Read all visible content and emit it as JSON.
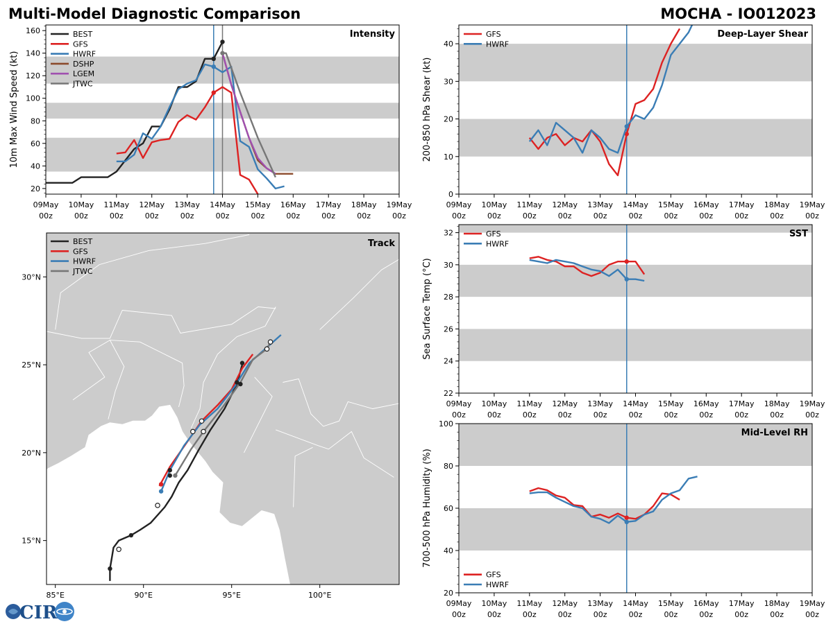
{
  "header": {
    "title": "Multi-Model Diagnostic Comparison",
    "storm": "MOCHA - IO012023"
  },
  "colors": {
    "BEST": "#222222",
    "GFS": "#dd2222",
    "HWRF": "#3a7db5",
    "DSHP": "#8b4a2b",
    "LGEM": "#a050b0",
    "JTWC": "#777777",
    "band": "#cccccc",
    "vline": "#3a7db5",
    "vline_gray": "#777777"
  },
  "time_axis": {
    "ticks": [
      "09May\n00z",
      "10May\n00z",
      "11May\n00z",
      "12May\n00z",
      "13May\n00z",
      "14May\n00z",
      "15May\n00z",
      "16May\n00z",
      "17May\n00z",
      "18May\n00z",
      "19May\n00z"
    ],
    "range_days": [
      0,
      10
    ],
    "analysis_day": 4.75
  },
  "chart_data": [
    {
      "id": "intensity",
      "type": "line",
      "title": "Intensity",
      "ylabel": "10m Max Wind Speed (kt)",
      "ylim": [
        15,
        165
      ],
      "yticks": [
        20,
        40,
        60,
        80,
        100,
        120,
        140,
        160
      ],
      "bands": [
        [
          35,
          65
        ],
        [
          82,
          96
        ],
        [
          113,
          137
        ]
      ],
      "vlines": [
        {
          "x": 4.75,
          "color": "HWRF"
        },
        {
          "x": 5.0,
          "color": "JTWC"
        }
      ],
      "legend": [
        "BEST",
        "GFS",
        "HWRF",
        "DSHP",
        "LGEM",
        "JTWC"
      ],
      "series": [
        {
          "name": "BEST",
          "x": [
            0,
            0.25,
            0.5,
            0.75,
            1,
            1.25,
            1.5,
            1.75,
            2,
            2.25,
            2.5,
            2.75,
            3,
            3.25,
            3.5,
            3.75,
            4,
            4.25,
            4.5,
            4.75,
            5
          ],
          "y": [
            25,
            25,
            25,
            25,
            30,
            30,
            30,
            30,
            35,
            45,
            55,
            60,
            75,
            75,
            90,
            110,
            110,
            115,
            135,
            135,
            150
          ],
          "markers": [
            {
              "x": 4.75,
              "y": 135
            },
            {
              "x": 5,
              "y": 150
            }
          ]
        },
        {
          "name": "GFS",
          "x": [
            2,
            2.25,
            2.5,
            2.75,
            3,
            3.25,
            3.5,
            3.75,
            4,
            4.25,
            4.5,
            4.75,
            5,
            5.25,
            5.5,
            5.75,
            6
          ],
          "y": [
            51,
            52,
            63,
            47,
            61,
            63,
            64,
            79,
            85,
            81,
            92,
            105,
            110,
            105,
            32,
            28,
            15
          ],
          "markers": [
            {
              "x": 4.75,
              "y": 105
            }
          ]
        },
        {
          "name": "HWRF",
          "x": [
            2,
            2.25,
            2.5,
            2.75,
            3,
            3.25,
            3.5,
            3.75,
            4,
            4.25,
            4.5,
            4.75,
            5,
            5.25,
            5.5,
            5.75,
            6,
            6.25,
            6.5,
            6.75
          ],
          "y": [
            44,
            44,
            50,
            69,
            64,
            75,
            92,
            108,
            113,
            116,
            130,
            128,
            123,
            128,
            62,
            57,
            37,
            29,
            20,
            22
          ],
          "markers": [
            {
              "x": 4.75,
              "y": 128
            }
          ]
        },
        {
          "name": "DSHP",
          "x": [
            5,
            5.25,
            5.5,
            5.75,
            6,
            6.25,
            6.5,
            6.75,
            7
          ],
          "y": [
            140,
            112,
            88,
            65,
            45,
            38,
            33,
            33,
            33
          ]
        },
        {
          "name": "LGEM",
          "x": [
            5,
            5.25,
            5.5,
            5.75,
            6,
            6.25,
            6.5
          ],
          "y": [
            140,
            112,
            88,
            65,
            47,
            38,
            33
          ]
        },
        {
          "name": "JTWC",
          "x": [
            5,
            5.1,
            5.25,
            5.5,
            6,
            6.5
          ],
          "y": [
            140,
            140,
            127,
            105,
            65,
            30
          ],
          "markers": [
            {
              "x": 5,
              "y": 140
            }
          ]
        }
      ]
    },
    {
      "id": "shear",
      "type": "line",
      "title": "Deep-Layer Shear",
      "ylabel": "200-850 hPa Shear (kt)",
      "ylim": [
        0,
        45
      ],
      "yticks": [
        0,
        10,
        20,
        30,
        40
      ],
      "bands": [
        [
          10,
          20
        ],
        [
          30,
          40
        ]
      ],
      "vlines": [
        {
          "x": 4.75,
          "color": "HWRF"
        }
      ],
      "legend": [
        "GFS",
        "HWRF"
      ],
      "series": [
        {
          "name": "GFS",
          "x": [
            2,
            2.25,
            2.5,
            2.75,
            3,
            3.25,
            3.5,
            3.75,
            4,
            4.25,
            4.5,
            4.75,
            5,
            5.25,
            5.5,
            5.75,
            6,
            6.25
          ],
          "y": [
            15,
            12,
            15,
            16,
            13,
            15,
            14,
            17,
            14,
            8,
            5,
            16,
            24,
            25,
            28,
            35,
            40,
            44
          ],
          "markers": [
            {
              "x": 4.75,
              "y": 16
            }
          ]
        },
        {
          "name": "HWRF",
          "x": [
            2,
            2.25,
            2.5,
            2.75,
            3,
            3.25,
            3.5,
            3.75,
            4,
            4.25,
            4.5,
            4.75,
            5,
            5.25,
            5.5,
            5.75,
            6,
            6.25,
            6.5,
            6.75
          ],
          "y": [
            14,
            17,
            13,
            19,
            17,
            15,
            11,
            17,
            15,
            12,
            11,
            18,
            21,
            20,
            23,
            29,
            37,
            40,
            43,
            48
          ],
          "markers": [
            {
              "x": 4.75,
              "y": 18
            }
          ]
        }
      ]
    },
    {
      "id": "sst",
      "type": "line",
      "title": "SST",
      "ylabel": "Sea Surface Temp (°C)",
      "ylim": [
        22,
        32.5
      ],
      "yticks": [
        22,
        24,
        26,
        28,
        30,
        32
      ],
      "bands": [
        [
          24,
          26
        ],
        [
          28,
          30
        ],
        [
          32,
          33
        ]
      ],
      "vlines": [
        {
          "x": 4.75,
          "color": "HWRF"
        }
      ],
      "legend": [
        "GFS",
        "HWRF"
      ],
      "series": [
        {
          "name": "GFS",
          "x": [
            2,
            2.25,
            2.5,
            2.75,
            3,
            3.25,
            3.5,
            3.75,
            4,
            4.25,
            4.5,
            4.75,
            5,
            5.25
          ],
          "y": [
            30.4,
            30.5,
            30.3,
            30.2,
            29.9,
            29.9,
            29.5,
            29.3,
            29.5,
            30.0,
            30.2,
            30.2,
            30.2,
            29.4
          ],
          "markers": [
            {
              "x": 4.75,
              "y": 30.2
            }
          ]
        },
        {
          "name": "HWRF",
          "x": [
            2,
            2.25,
            2.5,
            2.75,
            3,
            3.25,
            3.5,
            3.75,
            4,
            4.25,
            4.5,
            4.75,
            5,
            5.25
          ],
          "y": [
            30.3,
            30.2,
            30.1,
            30.3,
            30.2,
            30.1,
            29.9,
            29.7,
            29.6,
            29.3,
            29.7,
            29.1,
            29.1,
            29.0
          ],
          "markers": [
            {
              "x": 4.75,
              "y": 29.1
            }
          ]
        }
      ]
    },
    {
      "id": "rh",
      "type": "line",
      "title": "Mid-Level RH",
      "ylabel": "700-500 hPa Humidity (%)",
      "ylim": [
        20,
        100
      ],
      "yticks": [
        20,
        40,
        60,
        80,
        100
      ],
      "bands": [
        [
          40,
          60
        ],
        [
          80,
          100
        ]
      ],
      "vlines": [
        {
          "x": 4.75,
          "color": "HWRF"
        }
      ],
      "legend": [
        "GFS",
        "HWRF"
      ],
      "legend_position": "bottom-left",
      "series": [
        {
          "name": "GFS",
          "x": [
            2,
            2.25,
            2.5,
            2.75,
            3,
            3.25,
            3.5,
            3.75,
            4,
            4.25,
            4.5,
            4.75,
            5,
            5.25,
            5.5,
            5.75,
            6,
            6.25
          ],
          "y": [
            68,
            69.5,
            68.5,
            66,
            65,
            61.5,
            61,
            56,
            57,
            55.5,
            57.5,
            55.5,
            55,
            57,
            61,
            67,
            66.5,
            64
          ],
          "markers": [
            {
              "x": 4.75,
              "y": 55.5
            }
          ]
        },
        {
          "name": "HWRF",
          "x": [
            2,
            2.25,
            2.5,
            2.75,
            3,
            3.25,
            3.5,
            3.75,
            4,
            4.25,
            4.5,
            4.75,
            5,
            5.25,
            5.5,
            5.75,
            6,
            6.25,
            6.5,
            6.75
          ],
          "y": [
            67,
            67.5,
            67.5,
            65,
            63,
            61,
            60,
            56,
            55,
            53,
            56.5,
            53.5,
            54,
            57,
            58.5,
            64,
            67,
            68.5,
            74,
            75
          ],
          "markers": [
            {
              "x": 4.75,
              "y": 53.5
            }
          ]
        }
      ]
    },
    {
      "id": "track",
      "type": "scatter",
      "title": "Track",
      "lon_range": [
        84.5,
        104.5
      ],
      "lat_range": [
        12.5,
        32.5
      ],
      "lon_ticks": [
        85,
        90,
        95,
        100
      ],
      "lon_tick_labels": [
        "85°E",
        "90°E",
        "95°E",
        "100°E"
      ],
      "lat_ticks": [
        15,
        20,
        25,
        30
      ],
      "lat_tick_labels": [
        "15°N",
        "20°N",
        "25°N",
        "30°N"
      ],
      "legend": [
        "BEST",
        "GFS",
        "HWRF",
        "JTWC"
      ],
      "series": [
        {
          "name": "BEST",
          "lon": [
            88.1,
            88.1,
            88.2,
            88.3,
            88.6,
            89.3,
            89.8,
            90.4,
            91.2,
            91.6,
            92.0,
            92.5,
            93.1,
            93.8,
            94.6,
            95.3,
            95.6
          ],
          "lat": [
            12.7,
            13.4,
            14.0,
            14.6,
            15.0,
            15.3,
            15.6,
            16.0,
            16.9,
            17.5,
            18.3,
            19.0,
            20.1,
            21.3,
            22.5,
            23.9,
            25.0
          ],
          "markers": [
            {
              "lon": 88.1,
              "lat": 13.4,
              "fill": "dark"
            },
            {
              "lon": 88.6,
              "lat": 14.5,
              "fill": "open"
            },
            {
              "lon": 89.3,
              "lat": 15.3,
              "fill": "dark"
            },
            {
              "lon": 90.8,
              "lat": 17.0,
              "fill": "open"
            },
            {
              "lon": 91.5,
              "lat": 18.7,
              "fill": "dark"
            },
            {
              "lon": 91.5,
              "lat": 19.0,
              "fill": "dark"
            },
            {
              "lon": 95.3,
              "lat": 24.0,
              "fill": "dark"
            },
            {
              "lon": 95.5,
              "lat": 23.9,
              "fill": "dark"
            },
            {
              "lon": 95.6,
              "lat": 25.1,
              "fill": "dark"
            }
          ]
        },
        {
          "name": "GFS",
          "lon": [
            90.9,
            91.5,
            92.4,
            93.3,
            94.2,
            95.0,
            95.6,
            96.2
          ],
          "lat": [
            18.1,
            19.2,
            20.5,
            21.8,
            22.7,
            23.6,
            24.8,
            25.6
          ],
          "markers": [
            {
              "lon": 91.0,
              "lat": 18.2,
              "fill": "color"
            }
          ]
        },
        {
          "name": "HWRF",
          "lon": [
            91.0,
            91.5,
            92.3,
            93.2,
            94.2,
            95.2,
            96.0,
            96.9,
            97.8
          ],
          "lat": [
            17.8,
            19.0,
            20.4,
            21.6,
            22.5,
            23.8,
            25.1,
            25.9,
            26.7
          ],
          "markers": [
            {
              "lon": 91.0,
              "lat": 17.8,
              "fill": "color"
            }
          ]
        },
        {
          "name": "JTWC",
          "lon": [
            91.8,
            92.7,
            93.4,
            94.5,
            95.5,
            96.2,
            97.0,
            97.2
          ],
          "lat": [
            18.7,
            20.2,
            21.2,
            22.6,
            24.0,
            25.3,
            25.9,
            26.3
          ],
          "markers": [
            {
              "lon": 91.8,
              "lat": 18.7,
              "fill": "color"
            },
            {
              "lon": 92.8,
              "lat": 21.2,
              "fill": "open"
            },
            {
              "lon": 93.3,
              "lat": 21.8,
              "fill": "open"
            },
            {
              "lon": 93.4,
              "lat": 21.2,
              "fill": "open"
            },
            {
              "lon": 97.0,
              "lat": 25.9,
              "fill": "open"
            },
            {
              "lon": 97.2,
              "lat": 26.3,
              "fill": "open"
            }
          ]
        }
      ]
    }
  ],
  "logo": {
    "text": "CIRA"
  }
}
